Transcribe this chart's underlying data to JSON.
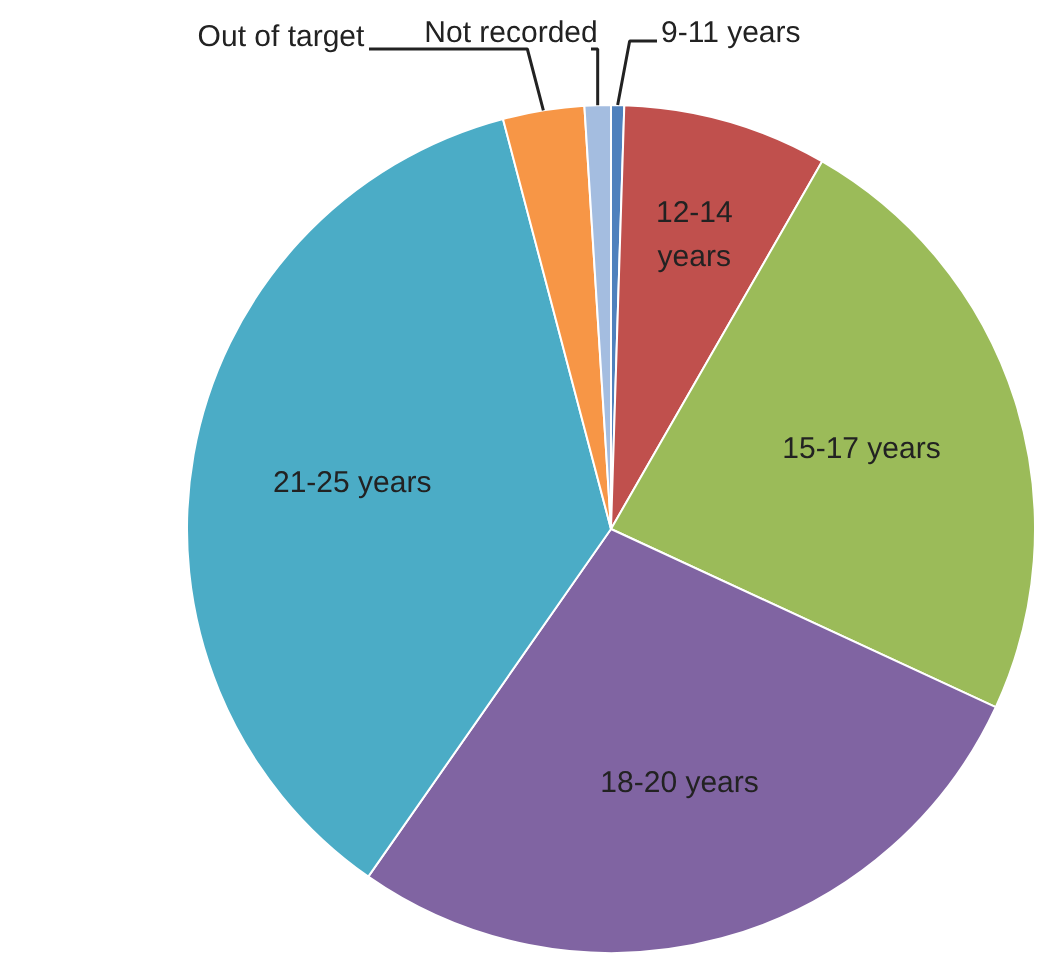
{
  "chart_data": {
    "type": "pie",
    "categories": [
      "9-11 years",
      "12-14 years",
      "15-17 years",
      "18-20 years",
      "21-25 years",
      "Out of target",
      "Not recorded"
    ],
    "values": [
      0.5,
      7.8,
      23.6,
      27.8,
      36.2,
      3.1,
      1.0
    ],
    "colors": [
      "#4f81bd",
      "#c0504d",
      "#9bbb59",
      "#8064a2",
      "#4bacc6",
      "#f79646",
      "#a4bde0"
    ]
  }
}
